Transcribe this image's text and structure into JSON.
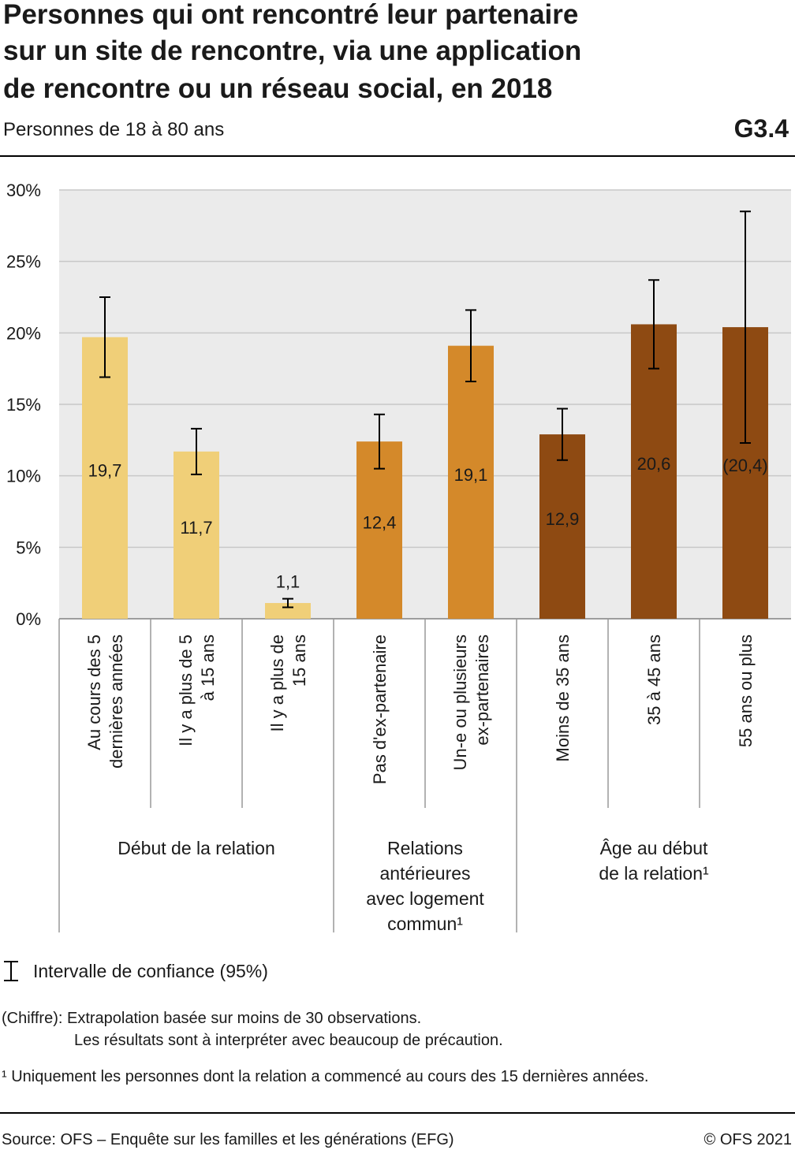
{
  "chart_data": {
    "type": "bar",
    "title": [
      "Personnes qui ont rencontré leur partenaire",
      "sur un site de rencontre, via une application",
      "de rencontre ou un réseau social, en 2018"
    ],
    "subtitle": "Personnes de 18 à 80 ans",
    "chart_id": "G3.4",
    "categories": [
      [
        "Au cours des 5",
        "dernières années"
      ],
      [
        "Il y a plus de 5",
        "à 15 ans"
      ],
      [
        "Il y a plus de",
        "15 ans"
      ],
      [
        "Pas d'ex-partenaire"
      ],
      [
        "Un-e ou plusieurs",
        "ex-partenaires"
      ],
      [
        "Moins de 35 ans"
      ],
      [
        "35 à 45 ans"
      ],
      [
        "55 ans ou plus"
      ]
    ],
    "groups": [
      {
        "label": [
          "Début de la relation"
        ],
        "size": 3
      },
      {
        "label": [
          "Relations",
          "antérieures",
          "avec logement",
          "commun¹"
        ],
        "size": 2
      },
      {
        "label": [
          "Âge au début",
          "de la relation¹"
        ],
        "size": 3
      }
    ],
    "values": [
      19.7,
      11.7,
      1.1,
      12.4,
      19.1,
      12.9,
      20.6,
      20.4
    ],
    "value_labels": [
      "19,7",
      "11,7",
      "1,1",
      "12,4",
      "19,1",
      "12,9",
      "20,6",
      "(20,4)"
    ],
    "ci_low": [
      16.9,
      10.1,
      0.8,
      10.5,
      16.6,
      11.1,
      17.5,
      12.3
    ],
    "ci_high": [
      22.5,
      13.3,
      1.4,
      14.3,
      21.6,
      14.7,
      23.7,
      28.5
    ],
    "colors": [
      "#f0cf78",
      "#f0cf78",
      "#f0cf78",
      "#d4892a",
      "#d4892a",
      "#8e4a12",
      "#8e4a12",
      "#8e4a12"
    ],
    "ylim": [
      0,
      30
    ],
    "yticks": [
      {
        "value": 0,
        "label": "0%"
      },
      {
        "value": 5,
        "label": "5%"
      },
      {
        "value": 10,
        "label": "10%"
      },
      {
        "value": 15,
        "label": "15%"
      },
      {
        "value": 20,
        "label": "20%"
      },
      {
        "value": 25,
        "label": "25%"
      },
      {
        "value": 30,
        "label": "30%"
      }
    ],
    "grid": true,
    "legend": "Intervalle de confiance (95%)",
    "notes": [
      [
        "(Chiffre): Extrapolation basée sur moins de 30 observations.",
        "Les résultats sont à interpréter avec beaucoup de précaution."
      ],
      [
        "¹  Uniquement les personnes dont la relation a commencé au cours des 15 dernières années."
      ]
    ],
    "source": "Source: OFS – Enquête sur les familles et les générations (EFG)",
    "copyright": "© OFS 2021"
  }
}
